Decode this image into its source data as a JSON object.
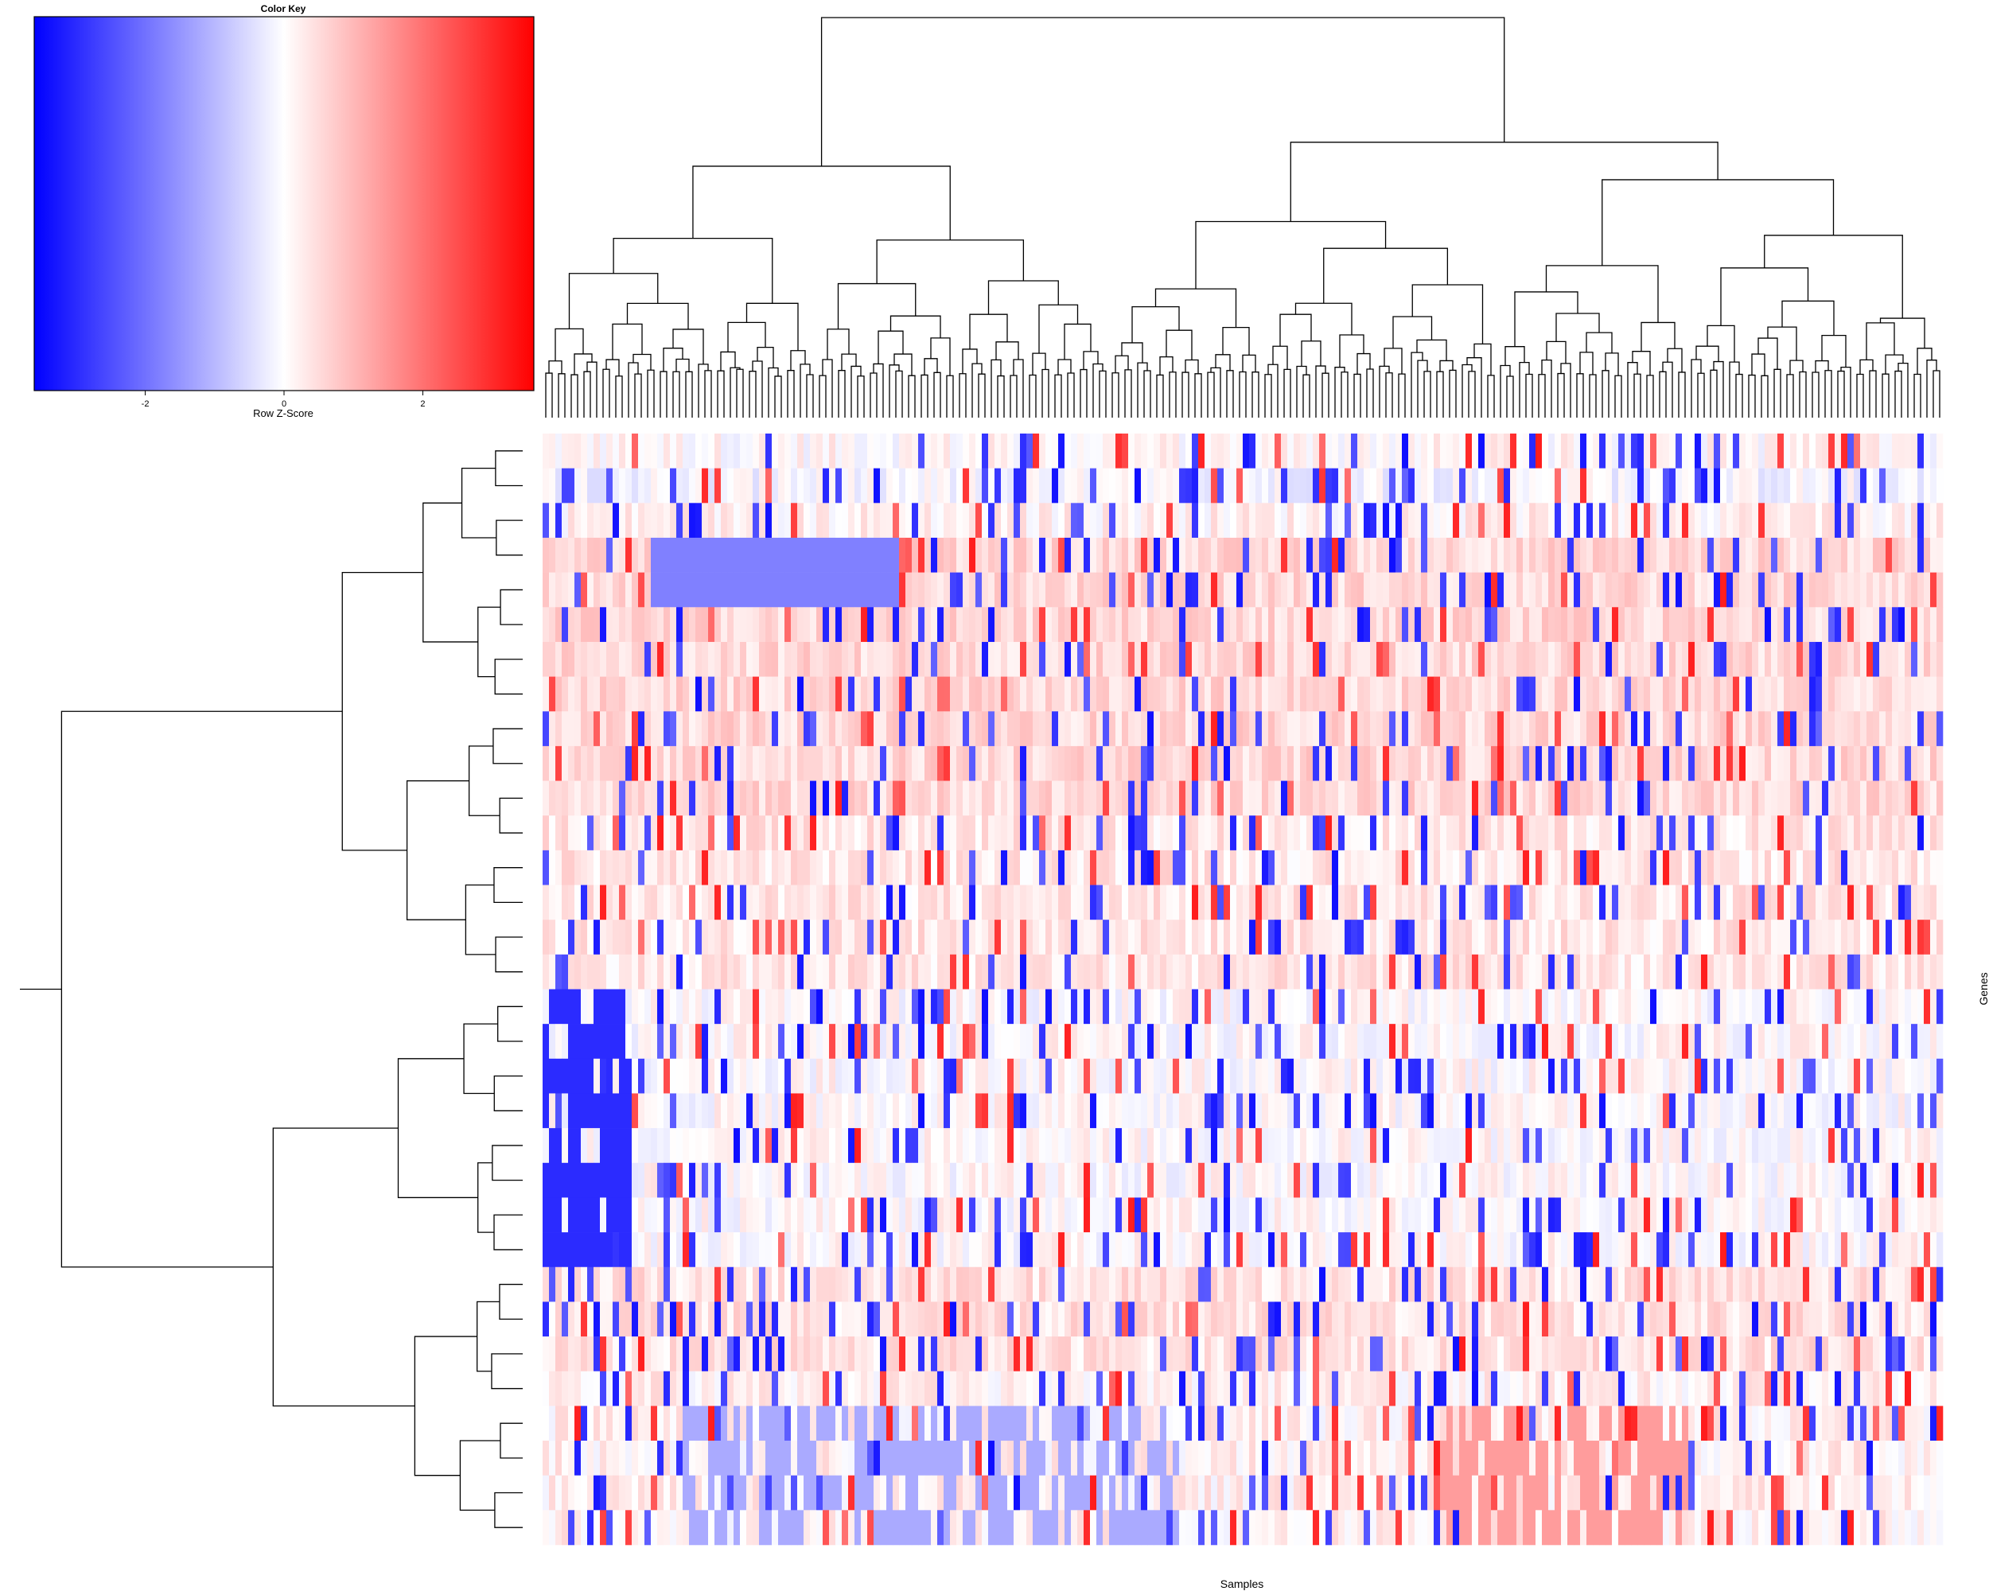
{
  "chart_data": {
    "type": "heatmap",
    "color_key": {
      "title": "Color Key",
      "xlabel": "Row Z-Score",
      "ticks": [
        -2,
        0,
        2
      ],
      "range": [
        -3.6,
        3.6
      ],
      "colors": [
        "#0000ff",
        "#ffffff",
        "#ff0000"
      ]
    },
    "xlabel": "Samples",
    "ylabel": "Genes",
    "n_rows": 32,
    "n_cols": 220,
    "row_dendrogram": "hierarchical clustering of 32 genes",
    "column_dendrogram": "hierarchical clustering of samples"
  }
}
